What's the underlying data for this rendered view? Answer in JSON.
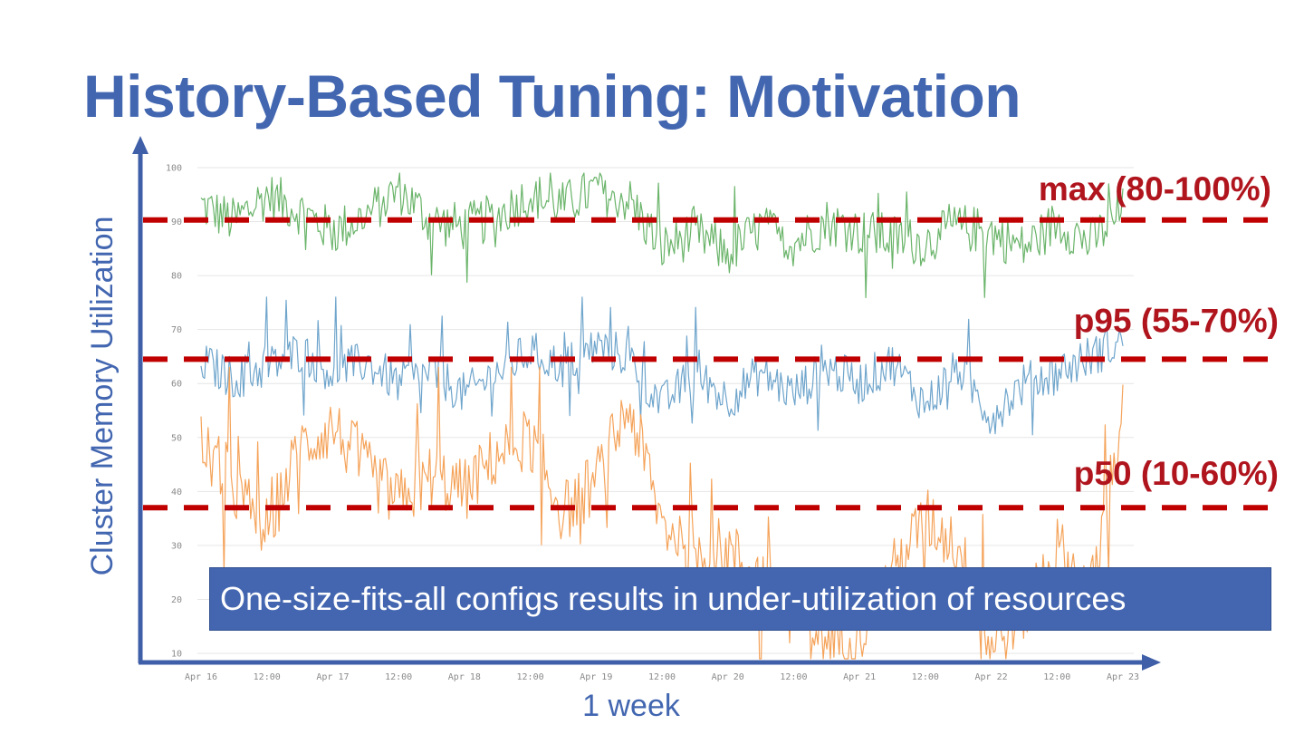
{
  "title": "History-Based Tuning: Motivation",
  "callout": "One-size-fits-all configs results in under-utilization of resources",
  "colors": {
    "title": "#4266b0",
    "axis": "#3f5fa8",
    "ref_line": "#c00000",
    "max_series": "#6ab46a",
    "p95_series": "#6fa5cc",
    "p50_series": "#f5a35a"
  },
  "chart_data": {
    "type": "line",
    "title": "",
    "xlabel": "1 week",
    "ylabel": "Cluster Memory Utilization",
    "ylim": [
      10,
      100
    ],
    "y_ticks": [
      "10",
      "20",
      "30",
      "40",
      "50",
      "60",
      "70",
      "80",
      "90",
      "100"
    ],
    "x_ticks": [
      "Apr 16",
      "12:00",
      "Apr 17",
      "12:00",
      "Apr 18",
      "12:00",
      "Apr 19",
      "12:00",
      "Apr 20",
      "12:00",
      "Apr 21",
      "12:00",
      "Apr 22",
      "12:00",
      "Apr 23"
    ],
    "reference_lines": [
      {
        "name": "max",
        "label": "max (80-100%)",
        "value": 90.3
      },
      {
        "name": "p95",
        "label": "p95 (55-70%)",
        "value": 64.5
      },
      {
        "name": "p50",
        "label": "p50 (10-60%)",
        "value": 37.0
      }
    ],
    "series": [
      {
        "name": "max",
        "x": [
          0,
          0.25,
          0.5,
          0.75,
          1,
          1.25,
          1.5,
          1.75,
          2,
          2.25,
          2.5,
          2.75,
          3,
          3.25,
          3.5,
          3.75,
          4,
          4.25,
          4.5,
          4.75,
          5,
          5.25,
          5.5,
          5.75,
          6,
          6.25,
          6.5,
          6.75,
          7
        ],
        "values": [
          93,
          90,
          95,
          92,
          88,
          91,
          96,
          90,
          89,
          91,
          95,
          93,
          96,
          94,
          85,
          88,
          84,
          89,
          86,
          90,
          88,
          87,
          86,
          89,
          88,
          85,
          90,
          86,
          92
        ]
      },
      {
        "name": "p95",
        "x": [
          0,
          0.25,
          0.5,
          0.75,
          1,
          1.25,
          1.5,
          1.75,
          2,
          2.25,
          2.5,
          2.75,
          3,
          3.25,
          3.5,
          3.75,
          4,
          4.25,
          4.5,
          4.75,
          5,
          5.25,
          5.5,
          5.75,
          6,
          6.25,
          6.5,
          6.75,
          7
        ],
        "values": [
          64,
          61,
          63,
          66,
          62,
          64,
          60,
          62,
          58,
          62,
          66,
          63,
          67,
          65,
          56,
          62,
          57,
          62,
          58,
          63,
          60,
          64,
          56,
          63,
          54,
          60,
          62,
          65,
          68
        ]
      },
      {
        "name": "p50",
        "x": [
          0,
          0.25,
          0.5,
          0.75,
          1,
          1.25,
          1.5,
          1.75,
          2,
          2.25,
          2.5,
          2.75,
          3,
          3.25,
          3.5,
          3.75,
          4,
          4.25,
          4.5,
          4.75,
          5,
          5.25,
          5.5,
          5.75,
          6,
          6.25,
          6.5,
          6.75,
          7
        ],
        "values": [
          49,
          40,
          33,
          48,
          52,
          44,
          38,
          43,
          40,
          47,
          50,
          36,
          42,
          56,
          34,
          30,
          29,
          24,
          20,
          12,
          14,
          25,
          35,
          30,
          11,
          18,
          30,
          20,
          55
        ]
      }
    ]
  }
}
